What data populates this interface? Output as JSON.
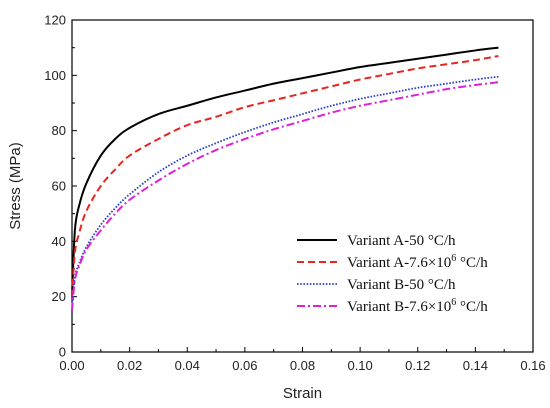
{
  "chart_data": {
    "type": "line",
    "xlabel": "Strain",
    "ylabel": "Stress (MPa)",
    "xlim": [
      0,
      0.16
    ],
    "ylim": [
      0,
      120
    ],
    "x_ticks": [
      "0.00",
      "0.02",
      "0.04",
      "0.06",
      "0.08",
      "0.10",
      "0.12",
      "0.14",
      "0.16"
    ],
    "y_ticks": [
      "0",
      "20",
      "40",
      "60",
      "80",
      "100",
      "120"
    ],
    "grid": false,
    "legend_position": "lower-right",
    "series": [
      {
        "name": "Variant A-50 °C/h",
        "legend": {
          "pre": "Variant A-50 °C/h",
          "sup": "",
          "post": ""
        },
        "color": "#000000",
        "dash": "solid",
        "x": [
          0,
          0.001,
          0.0025,
          0.005,
          0.01,
          0.015,
          0.02,
          0.03,
          0.04,
          0.05,
          0.06,
          0.07,
          0.08,
          0.09,
          0.1,
          0.11,
          0.12,
          0.13,
          0.14,
          0.148
        ],
        "y": [
          20,
          44,
          53,
          61,
          71,
          77,
          81,
          86,
          89,
          92,
          94.5,
          97,
          99,
          101,
          103,
          104.5,
          106,
          107.5,
          109,
          110
        ]
      },
      {
        "name": "Variant A-7.6×10⁶ °C/h",
        "legend": {
          "pre": "Variant A-7.6×10",
          "sup": "6",
          "post": " °C/h"
        },
        "color": "#e8251f",
        "dash": "dashed",
        "x": [
          0,
          0.001,
          0.0025,
          0.005,
          0.01,
          0.015,
          0.02,
          0.03,
          0.04,
          0.05,
          0.06,
          0.07,
          0.08,
          0.09,
          0.1,
          0.11,
          0.12,
          0.13,
          0.14,
          0.148
        ],
        "y": [
          20,
          36,
          43,
          51,
          60,
          66,
          71,
          77,
          82,
          85,
          88.5,
          91,
          93.5,
          96,
          98.5,
          100.5,
          102.5,
          104,
          105.5,
          107
        ]
      },
      {
        "name": "Variant B-50 °C/h",
        "legend": {
          "pre": "Variant B-50 °C/h",
          "sup": "",
          "post": ""
        },
        "color": "#2a3ecf",
        "dash": "dotted",
        "x": [
          0,
          0.001,
          0.0025,
          0.005,
          0.01,
          0.015,
          0.02,
          0.03,
          0.04,
          0.05,
          0.06,
          0.07,
          0.08,
          0.09,
          0.1,
          0.11,
          0.12,
          0.13,
          0.14,
          0.148
        ],
        "y": [
          15,
          27,
          32,
          38,
          46,
          52,
          57,
          65,
          71,
          75.5,
          79.5,
          83,
          86,
          89,
          91.5,
          93.5,
          95.5,
          97,
          98.5,
          99.5
        ]
      },
      {
        "name": "Variant B-7.6×10⁶ °C/h",
        "legend": {
          "pre": "Variant B-7.6×10",
          "sup": "6",
          "post": " °C/h"
        },
        "color": "#e020d8",
        "dash": "dashdot",
        "x": [
          0,
          0.001,
          0.0025,
          0.005,
          0.01,
          0.015,
          0.02,
          0.03,
          0.04,
          0.05,
          0.06,
          0.07,
          0.08,
          0.09,
          0.1,
          0.11,
          0.12,
          0.13,
          0.14,
          0.148
        ],
        "y": [
          15,
          26,
          31,
          37,
          44,
          50,
          55,
          62,
          68,
          73,
          77,
          80.5,
          83.5,
          86.5,
          89,
          91,
          93,
          95,
          96.5,
          97.5
        ]
      }
    ]
  }
}
